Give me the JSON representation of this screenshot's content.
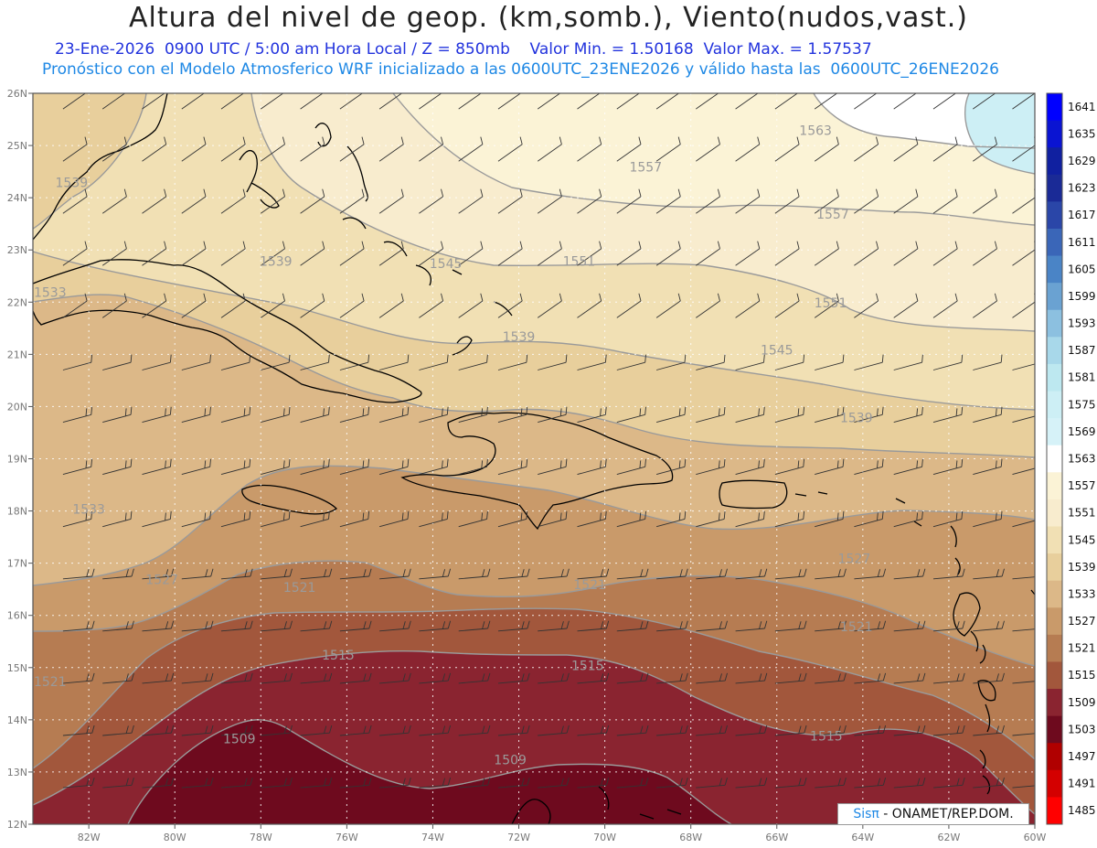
{
  "header": {
    "title": "Altura del nivel de geop. (km,somb.), Viento(nudos,vast.)",
    "line1": "23-Ene-2026  0900 UTC / 5:00 am Hora Local / Z = 850mb    Valor Min. = 1.50168  Valor Max. = 1.57537",
    "line2": "Pronóstico con el Modelo Atmosferico WRF inicializado a las 0600UTC_23ENE2026 y válido hasta las  0600UTC_26ENE2026"
  },
  "chart_data": {
    "type": "heatmap",
    "x_ticks": [
      "82W",
      "80W",
      "78W",
      "76W",
      "74W",
      "72W",
      "70W",
      "68W",
      "66W",
      "64W",
      "62W",
      "60W"
    ],
    "x_values": [
      -82,
      -80,
      -78,
      -76,
      -74,
      -72,
      -70,
      -68,
      -66,
      -64,
      -62,
      -60
    ],
    "y_ticks": [
      "26N",
      "25N",
      "24N",
      "23N",
      "22N",
      "21N",
      "20N",
      "19N",
      "18N",
      "17N",
      "16N",
      "15N",
      "14N",
      "13N",
      "12N"
    ],
    "y_values": [
      26,
      25,
      24,
      23,
      22,
      21,
      20,
      19,
      18,
      17,
      16,
      15,
      14,
      13,
      12
    ],
    "xlim": [
      -83.3,
      -60
    ],
    "ylim": [
      12,
      26
    ],
    "grid": true,
    "colorbar": {
      "levels": [
        1641,
        1635,
        1629,
        1623,
        1617,
        1611,
        1605,
        1599,
        1593,
        1587,
        1581,
        1575,
        1569,
        1563,
        1557,
        1551,
        1545,
        1539,
        1533,
        1527,
        1521,
        1515,
        1509,
        1503,
        1497,
        1491,
        1485
      ],
      "colors": [
        "#0000ff",
        "#0a14d2",
        "#1020a0",
        "#1a2a96",
        "#2a46a8",
        "#3a66b8",
        "#4a84c6",
        "#6aa2d2",
        "#8cc0e0",
        "#a8d8ea",
        "#bde8f0",
        "#cdeff5",
        "#d6f2f8",
        "#ffffff",
        "#fbf3d6",
        "#f8ecce",
        "#f1e0b4",
        "#e8cf9c",
        "#dcb888",
        "#c99a6a",
        "#b67c52",
        "#a2573c",
        "#8a2430",
        "#6e0a1e",
        "#b00000",
        "#d40000",
        "#ff0000"
      ]
    },
    "field_colors": {
      "1503": "#6e0a1e",
      "1509": "#8a2430",
      "1515": "#a2573c",
      "1521": "#b67c52",
      "1527": "#c99a6a",
      "1533": "#dcb888",
      "1539": "#e8cf9c",
      "1545": "#f1e0b4",
      "1551": "#f8ecce",
      "1557": "#fbf3d6",
      "1563": "#ffffff",
      "1569": "#cdeff5"
    },
    "contour_labels": [
      {
        "text": "1563",
        "lon": -65.1,
        "lat": 25.2
      },
      {
        "text": "1557",
        "lon": -69.05,
        "lat": 24.5
      },
      {
        "text": "1557",
        "lon": -64.7,
        "lat": 23.6
      },
      {
        "text": "1539",
        "lon": -82.4,
        "lat": 24.2
      },
      {
        "text": "1539",
        "lon": -77.65,
        "lat": 22.7
      },
      {
        "text": "1545",
        "lon": -73.7,
        "lat": 22.65
      },
      {
        "text": "1551",
        "lon": -70.6,
        "lat": 22.7
      },
      {
        "text": "1551",
        "lon": -64.75,
        "lat": 21.9
      },
      {
        "text": "1533",
        "lon": -82.9,
        "lat": 22.1
      },
      {
        "text": "1539",
        "lon": -72.0,
        "lat": 21.25
      },
      {
        "text": "1545",
        "lon": -66.0,
        "lat": 21.0
      },
      {
        "text": "1539",
        "lon": -64.15,
        "lat": 19.7
      },
      {
        "text": "1533",
        "lon": -82.0,
        "lat": 17.95
      },
      {
        "text": "1527",
        "lon": -80.3,
        "lat": 16.6
      },
      {
        "text": "1521",
        "lon": -77.1,
        "lat": 16.45
      },
      {
        "text": "1521",
        "lon": -70.35,
        "lat": 16.5
      },
      {
        "text": "1527",
        "lon": -64.2,
        "lat": 17.0
      },
      {
        "text": "1521",
        "lon": -64.15,
        "lat": 15.7
      },
      {
        "text": "1515",
        "lon": -76.2,
        "lat": 15.15
      },
      {
        "text": "1515",
        "lon": -70.4,
        "lat": 14.95
      },
      {
        "text": "1521",
        "lon": -82.9,
        "lat": 14.65
      },
      {
        "text": "1515",
        "lon": -64.85,
        "lat": 13.6
      },
      {
        "text": "1509",
        "lon": -78.5,
        "lat": 13.55
      },
      {
        "text": "1509",
        "lon": -72.2,
        "lat": 13.15
      }
    ]
  },
  "credit": {
    "brand": "Sisπ",
    "text": " - ONAMET/REP.DOM."
  }
}
